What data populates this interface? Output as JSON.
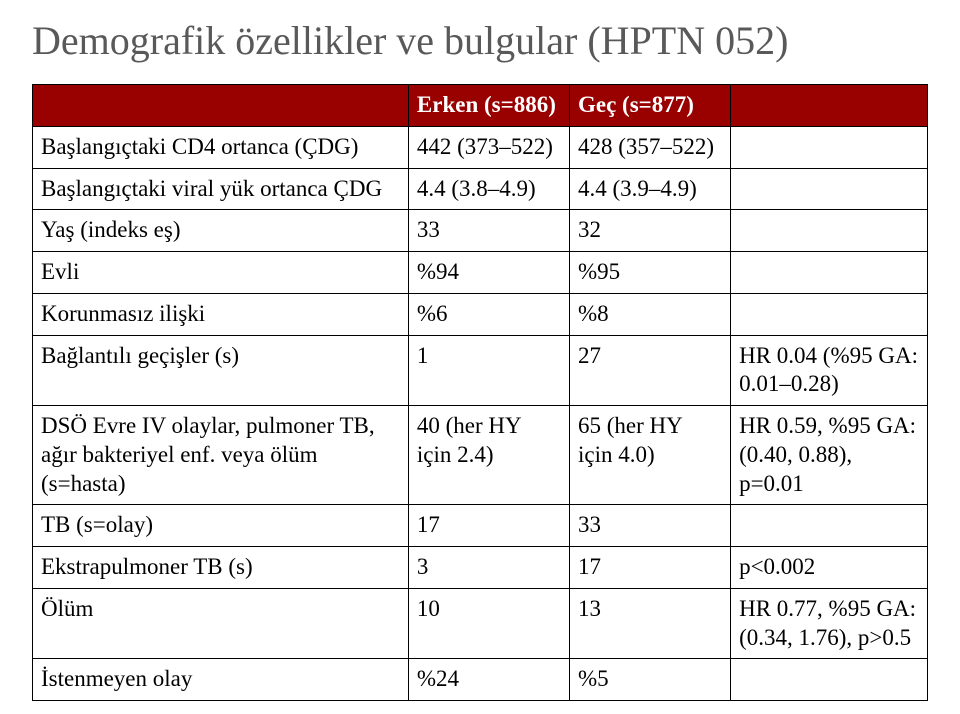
{
  "title": "Demografik özellikler ve bulgular (HPTN 052)",
  "table": {
    "header": {
      "col0": "",
      "col1": "Erken\n(s=886)",
      "col2": "Geç (s=877)",
      "col3": ""
    },
    "rows": [
      {
        "c0": "Başlangıçtaki CD4 ortanca (ÇDG)",
        "c1": "442\n(373–522)",
        "c2": "428\n(357–522)",
        "c3": ""
      },
      {
        "c0": "Başlangıçtaki viral yük ortanca\nÇDG",
        "c1": "4.4\n(3.8–4.9)",
        "c2": "4.4\n(3.9–4.9)",
        "c3": ""
      },
      {
        "c0": "Yaş (indeks eş)",
        "c1": "33",
        "c2": "32",
        "c3": ""
      },
      {
        "c0": "Evli",
        "c1": "%94",
        "c2": "%95",
        "c3": ""
      },
      {
        "c0": "Korunmasız ilişki",
        "c1": "%6",
        "c2": "%8",
        "c3": ""
      },
      {
        "c0": "Bağlantılı geçişler (s)",
        "c1": "1",
        "c2": "27",
        "c3": "HR 0.04 (%95 GA:\n0.01–0.28)"
      },
      {
        "c0": "DSÖ Evre IV olaylar, pulmoner TB,\nağır bakteriyel enf. veya ölüm\n(s=hasta)",
        "c1": "40\n(her HY için\n2.4)",
        "c2": "65\n(her HY için\n4.0)",
        "c3": "HR 0.59, %95 GA:\n(0.40, 0.88), p=0.01"
      },
      {
        "c0": "TB (s=olay)",
        "c1": "17",
        "c2": "33",
        "c3": ""
      },
      {
        "c0": "Ekstrapulmoner TB (s)",
        "c1": "3",
        "c2": "17",
        "c3": "p<0.002"
      },
      {
        "c0": "Ölüm",
        "c1": "10",
        "c2": "13",
        "c3": "HR 0.77, %95 GA:\n(0.34, 1.76), p>0.5"
      },
      {
        "c0": "İstenmeyen olay",
        "c1": "%24",
        "c2": "%5",
        "c3": ""
      }
    ],
    "colors": {
      "header_bg": "#990000",
      "header_text": "#ffffff",
      "border": "#000000",
      "body_text": "#000000",
      "title_text": "#595959",
      "page_bg": "#ffffff"
    },
    "fonts": {
      "title_size_pt": 30,
      "body_size_pt": 17,
      "family": "Times New Roman"
    }
  }
}
